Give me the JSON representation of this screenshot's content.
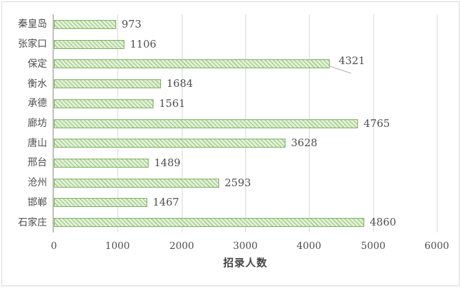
{
  "chart_data": {
    "type": "bar",
    "orientation": "horizontal",
    "title": "",
    "xlabel": "招录人数",
    "ylabel": "",
    "categories": [
      "秦皇岛",
      "张家口",
      "保定",
      "衡水",
      "承德",
      "廊坊",
      "唐山",
      "邢台",
      "沧州",
      "邯郸",
      "石家庄"
    ],
    "values": [
      973,
      1106,
      4321,
      1684,
      1561,
      4765,
      3628,
      1489,
      2593,
      1467,
      4860
    ],
    "data_labels": [
      "973",
      "1106",
      "4321",
      "1684",
      "1561",
      "4765",
      "3628",
      "1489",
      "2593",
      "1467",
      "4860"
    ],
    "x_ticks": [
      "0",
      "1000",
      "2000",
      "3000",
      "4000",
      "5000",
      "6000"
    ],
    "xlim": [
      0,
      6000
    ],
    "grid": "vertical-only",
    "legend": "none",
    "callout": {
      "category": "保定",
      "value": "4321",
      "has_leader_line": true
    },
    "colors": {
      "bar_fill_bg": "#E6F1DD",
      "bar_fill_stripe": "#A6CF8D",
      "bar_border": "#77B158",
      "gridline": "#D9D9D9",
      "axis_line": "#BFBFBF",
      "text": "#4D4D4D",
      "axis_title_text": "#444444",
      "leader_line": "#A6A6A6",
      "chart_border": "#D9D9D9",
      "background": "#FFFFFF"
    }
  }
}
